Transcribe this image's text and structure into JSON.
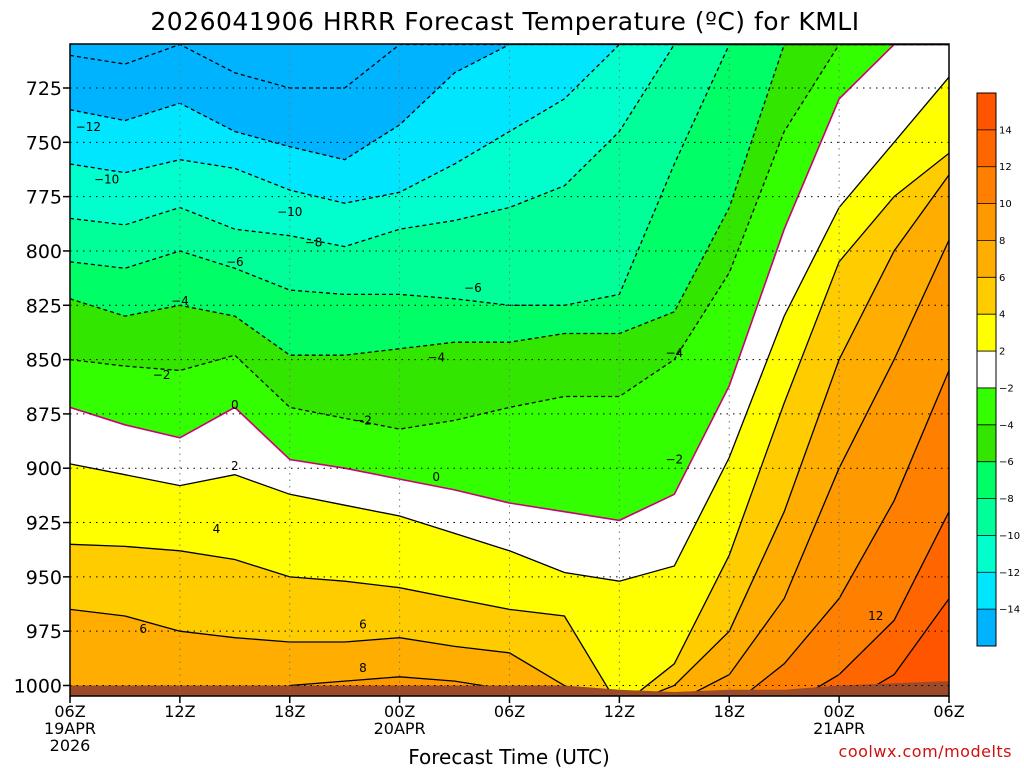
{
  "chart_data": {
    "type": "contour-filled",
    "title": "2026041906 HRRR Forecast Temperature (ºC) for KMLI",
    "xlabel": "Forecast Time (UTC)",
    "credit": "coolwx.com/modelts",
    "x_ticks": [
      {
        "hour": 0,
        "lines": [
          "06Z",
          "19APR",
          "2026"
        ]
      },
      {
        "hour": 6,
        "lines": [
          "12Z"
        ]
      },
      {
        "hour": 12,
        "lines": [
          "18Z"
        ]
      },
      {
        "hour": 18,
        "lines": [
          "00Z",
          "20APR"
        ]
      },
      {
        "hour": 24,
        "lines": [
          "06Z"
        ]
      },
      {
        "hour": 30,
        "lines": [
          "12Z"
        ]
      },
      {
        "hour": 36,
        "lines": [
          "18Z"
        ]
      },
      {
        "hour": 42,
        "lines": [
          "00Z",
          "21APR"
        ]
      },
      {
        "hour": 48,
        "lines": [
          "06Z"
        ]
      }
    ],
    "xlim_hours": [
      0,
      48
    ],
    "y_ticks": [
      725,
      750,
      775,
      800,
      825,
      850,
      875,
      900,
      925,
      950,
      975,
      1000
    ],
    "ylim_hPa": [
      1010,
      705
    ],
    "grid": "dotted",
    "colorbar": {
      "placement": "right",
      "ticks": [
        14,
        12,
        10,
        8,
        6,
        4,
        2,
        -2,
        -4,
        -6,
        -8,
        -10,
        -12,
        -14
      ],
      "bands": [
        {
          "range": "above 14",
          "color": "#ff5500"
        },
        {
          "range": "12 to 14",
          "color": "#ff6600"
        },
        {
          "range": "10 to 12",
          "color": "#ff8000"
        },
        {
          "range": "8 to 10",
          "color": "#ff9900"
        },
        {
          "range": "6 to 8",
          "color": "#ffad00"
        },
        {
          "range": "4 to 6",
          "color": "#ffcc00"
        },
        {
          "range": "2 to 4",
          "color": "#ffff00"
        },
        {
          "range": "-2 to 2",
          "color": "#ffffff"
        },
        {
          "range": "-4 to -2",
          "color": "#33ff00"
        },
        {
          "range": "-6 to -4",
          "color": "#33e600"
        },
        {
          "range": "-8 to -6",
          "color": "#00ff66"
        },
        {
          "range": "-10 to -8",
          "color": "#00ff99"
        },
        {
          "range": "-12 to -10",
          "color": "#00ffcc"
        },
        {
          "range": "-14 to -12",
          "color": "#00e6ff"
        },
        {
          "range": "below -14",
          "color": "#00b3ff"
        }
      ]
    },
    "ground_color": "#9b4a2a",
    "contour_hours": [
      0,
      3,
      6,
      9,
      12,
      15,
      18,
      21,
      24,
      27,
      30,
      33,
      36,
      39,
      42,
      45,
      48
    ],
    "isotherms_hPa": [
      {
        "value": 14,
        "hPa": [
          1010,
          1010,
          1010,
          1010,
          1010,
          1010,
          1010,
          1010,
          1010,
          1010,
          1010,
          1010,
          1010,
          1010,
          1010,
          995,
          960
        ]
      },
      {
        "value": 12,
        "hPa": [
          1010,
          1010,
          1010,
          1010,
          1010,
          1010,
          1010,
          1010,
          1010,
          1010,
          1010,
          1010,
          1010,
          1010,
          995,
          970,
          920
        ]
      },
      {
        "value": 10,
        "hPa": [
          1010,
          1010,
          1010,
          1010,
          1010,
          1010,
          1010,
          1010,
          1010,
          1010,
          1010,
          1010,
          1010,
          990,
          960,
          915,
          855
        ]
      },
      {
        "value": 8,
        "hPa": [
          1010,
          1010,
          1010,
          1010,
          1000,
          998,
          996,
          998,
          1002,
          1008,
          1010,
          1008,
          995,
          960,
          900,
          850,
          795
        ]
      },
      {
        "value": 6,
        "hPa": [
          965,
          968,
          975,
          978,
          980,
          980,
          978,
          982,
          985,
          1000,
          1010,
          1000,
          975,
          920,
          850,
          800,
          765
        ]
      },
      {
        "value": 4,
        "hPa": [
          935,
          936,
          938,
          942,
          950,
          952,
          955,
          960,
          965,
          968,
          1010,
          990,
          940,
          870,
          805,
          775,
          755
        ]
      },
      {
        "value": 2,
        "hPa": [
          898,
          903,
          908,
          903,
          912,
          917,
          922,
          930,
          938,
          948,
          952,
          945,
          895,
          830,
          780,
          750,
          720
        ]
      },
      {
        "value": 0,
        "hPa": [
          872,
          880,
          886,
          872,
          896,
          900,
          905,
          910,
          916,
          920,
          924,
          912,
          862,
          790,
          730,
          705,
          705
        ]
      },
      {
        "value": -2,
        "hPa": [
          850,
          853,
          855,
          848,
          872,
          877,
          882,
          878,
          872,
          867,
          867,
          850,
          810,
          745,
          705,
          705,
          705
        ]
      },
      {
        "value": -4,
        "hPa": [
          822,
          830,
          825,
          830,
          848,
          848,
          845,
          842,
          842,
          838,
          838,
          828,
          780,
          705,
          705,
          705,
          705
        ]
      },
      {
        "value": -6,
        "hPa": [
          805,
          808,
          800,
          808,
          818,
          820,
          820,
          822,
          825,
          825,
          820,
          760,
          705,
          705,
          705,
          705,
          705
        ]
      },
      {
        "value": -8,
        "hPa": [
          785,
          788,
          780,
          790,
          793,
          798,
          790,
          786,
          780,
          770,
          745,
          705,
          705,
          705,
          705,
          705,
          705
        ]
      },
      {
        "value": -10,
        "hPa": [
          760,
          764,
          758,
          762,
          772,
          778,
          773,
          760,
          745,
          730,
          705,
          705,
          705,
          705,
          705,
          705,
          705
        ]
      },
      {
        "value": -12,
        "hPa": [
          735,
          740,
          732,
          745,
          752,
          758,
          742,
          718,
          705,
          705,
          705,
          705,
          705,
          705,
          705,
          705,
          705
        ]
      },
      {
        "value": -14,
        "hPa": [
          710,
          714,
          705,
          718,
          725,
          725,
          705,
          705,
          705,
          705,
          705,
          705,
          705,
          705,
          705,
          705,
          705
        ]
      }
    ],
    "ground_hPa": [
      1000,
      1000,
      1000,
      1000,
      1000,
      1000,
      1000,
      1000,
      1000,
      1000,
      1002,
      1003,
      1002,
      1002,
      1000,
      999,
      998
    ],
    "contour_labels": [
      {
        "text": "−12",
        "hour": 1.0,
        "hPa": 743
      },
      {
        "text": "−10",
        "hour": 2.0,
        "hPa": 767
      },
      {
        "text": "−10",
        "hour": 12.0,
        "hPa": 782
      },
      {
        "text": "−8",
        "hour": 13.3,
        "hPa": 796
      },
      {
        "text": "−6",
        "hour": 9.0,
        "hPa": 805
      },
      {
        "text": "−6",
        "hour": 22.0,
        "hPa": 817
      },
      {
        "text": "−4",
        "hour": 6.0,
        "hPa": 823
      },
      {
        "text": "−4",
        "hour": 20.0,
        "hPa": 849
      },
      {
        "text": "−4",
        "hour": 33.0,
        "hPa": 847
      },
      {
        "text": "−2",
        "hour": 5.0,
        "hPa": 857
      },
      {
        "text": "−2",
        "hour": 16.0,
        "hPa": 878
      },
      {
        "text": "−2",
        "hour": 33.0,
        "hPa": 896
      },
      {
        "text": "0",
        "hour": 9.0,
        "hPa": 871
      },
      {
        "text": "0",
        "hour": 20.0,
        "hPa": 904
      },
      {
        "text": "2",
        "hour": 9.0,
        "hPa": 899
      },
      {
        "text": "4",
        "hour": 8.0,
        "hPa": 928
      },
      {
        "text": "6",
        "hour": 4.0,
        "hPa": 974
      },
      {
        "text": "6",
        "hour": 16.0,
        "hPa": 972
      },
      {
        "text": "8",
        "hour": 16.0,
        "hPa": 992
      },
      {
        "text": "12",
        "hour": 44.0,
        "hPa": 968
      }
    ]
  }
}
